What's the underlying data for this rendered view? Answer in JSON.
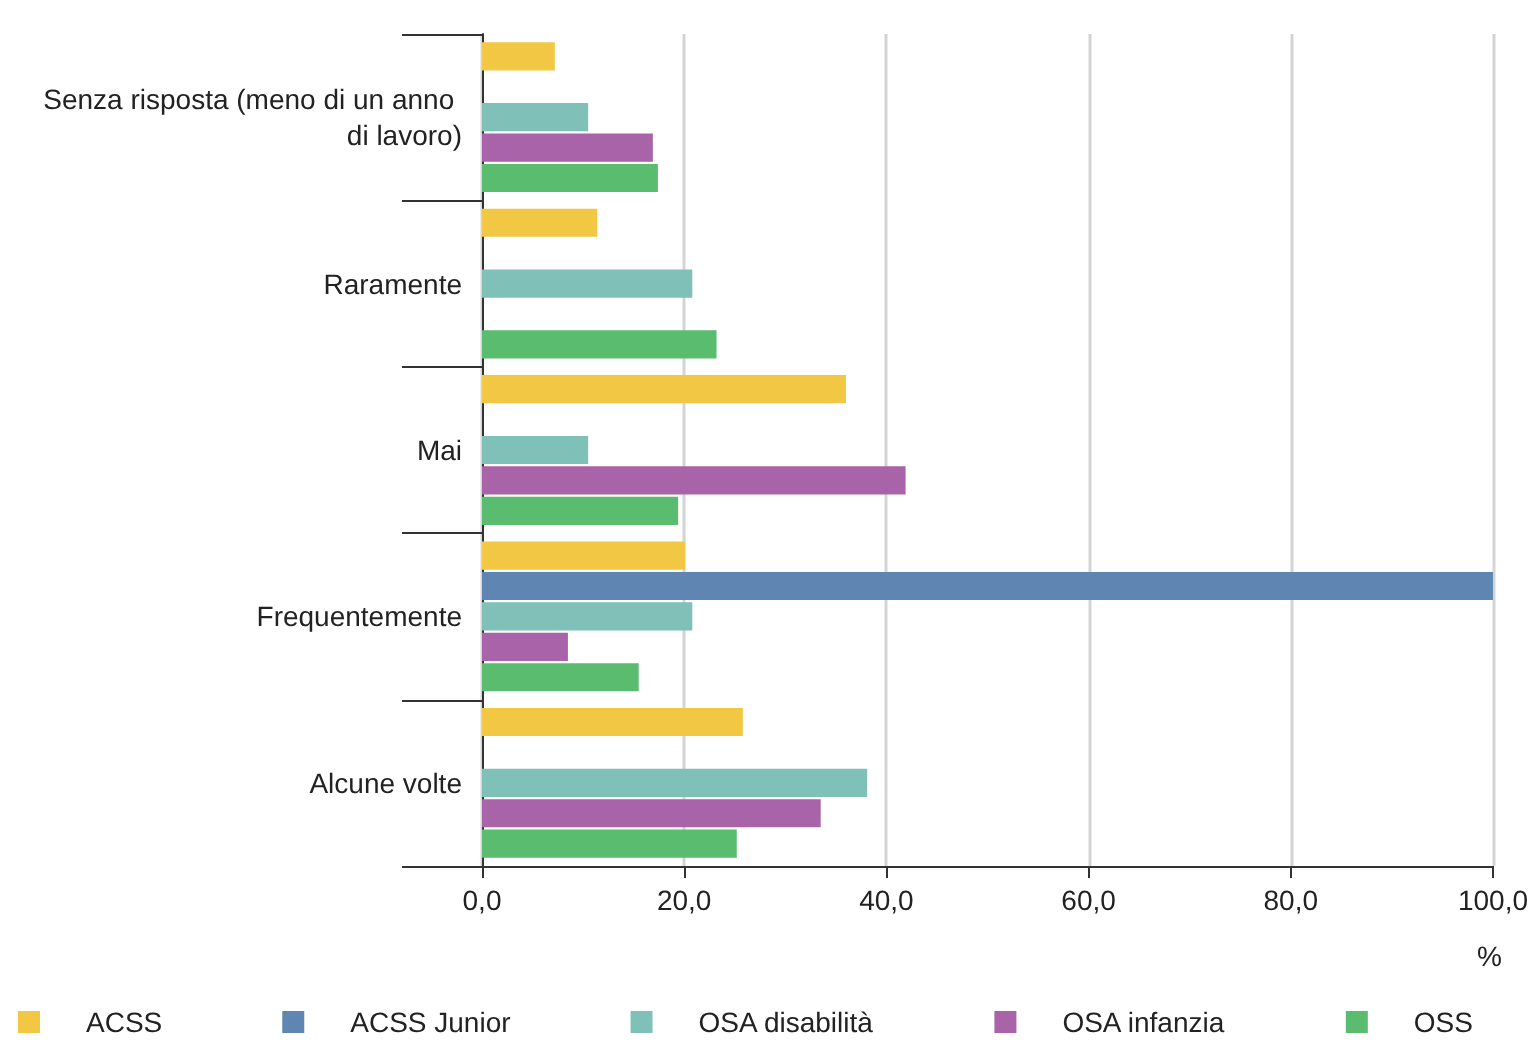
{
  "chart_data": {
    "type": "bar",
    "orientation": "horizontal",
    "xlabel": "%",
    "categories": [
      "Senza risposta (meno di un anno di lavoro)",
      "Raramente",
      "Mai",
      "Frequentemente",
      "Alcune volte"
    ],
    "series": [
      {
        "name": "ACSS",
        "color": "#f2c744",
        "values": [
          7.2,
          11.4,
          36.0,
          20.1,
          25.8
        ]
      },
      {
        "name": "ACSS Junior",
        "color": "#5f86b2",
        "values": [
          null,
          null,
          null,
          100,
          null
        ]
      },
      {
        "name": "OSA disabilità",
        "color": "#7fc0b8",
        "values": [
          10.5,
          20.8,
          10.5,
          20.8,
          38.1
        ]
      },
      {
        "name": "OSA infanzia",
        "color": "#a963a8",
        "values": [
          16.9,
          null,
          41.9,
          8.5,
          33.5
        ]
      },
      {
        "name": "OSS",
        "color": "#59bc6f",
        "values": [
          17.4,
          23.2,
          19.4,
          15.5,
          25.2
        ]
      }
    ],
    "xlim": [
      0,
      100
    ],
    "xticks": [
      {
        "value": 0,
        "label": "0,0"
      },
      {
        "value": 20,
        "label": "20,0"
      },
      {
        "value": 40,
        "label": "40,0"
      },
      {
        "value": 60,
        "label": "60,0"
      },
      {
        "value": 80,
        "label": "80,0"
      },
      {
        "value": 100,
        "label": "100,0"
      }
    ],
    "grid": "x",
    "legend": "bottom"
  }
}
